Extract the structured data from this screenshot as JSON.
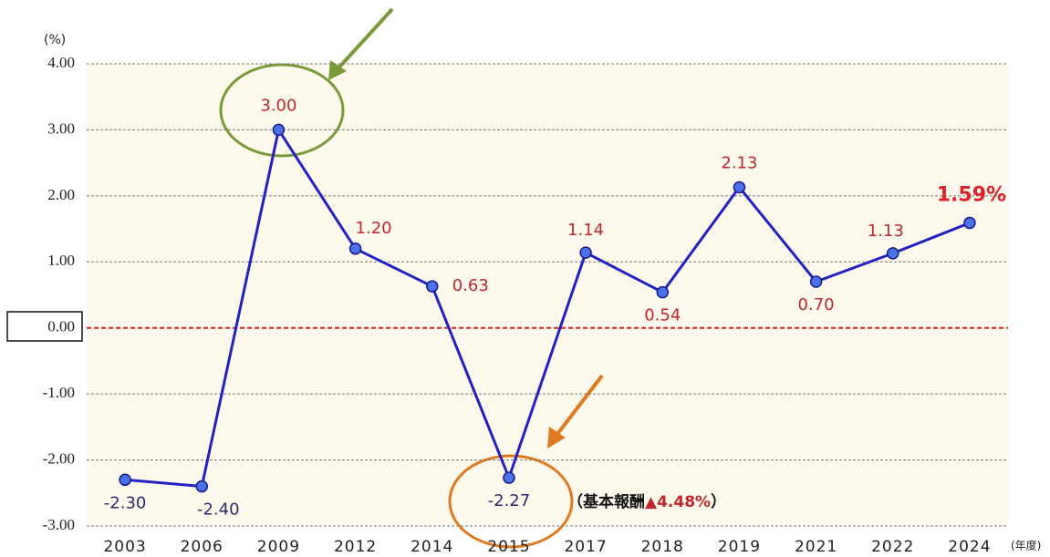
{
  "chart_data": {
    "type": "line",
    "y_axis_label": "(%)",
    "x_axis_label": "(年度)",
    "categories": [
      "2003",
      "2006",
      "2009",
      "2012",
      "2014",
      "2015",
      "2017",
      "2018",
      "2019",
      "2021",
      "2022",
      "2024"
    ],
    "series": [
      {
        "color": "#2222c4",
        "values": [
          -2.3,
          -2.4,
          3.0,
          1.2,
          0.63,
          -2.27,
          1.14,
          0.54,
          2.13,
          0.7,
          1.13,
          1.59
        ],
        "value_labels": [
          "-2.30",
          "-2.40",
          "3.00",
          "1.20",
          "0.63",
          "-2.27",
          "1.14",
          "0.54",
          "2.13",
          "0.70",
          "1.13",
          "1.59%"
        ]
      }
    ],
    "ylim": [
      -3,
      4
    ],
    "yticks": [
      {
        "value": 4,
        "label": "4.00"
      },
      {
        "value": 3,
        "label": "3.00"
      },
      {
        "value": 2,
        "label": "2.00"
      },
      {
        "value": 1,
        "label": "1.00"
      },
      {
        "value": 0,
        "label": "0.00"
      },
      {
        "value": -1,
        "label": "-1.00"
      },
      {
        "value": -2,
        "label": "-2.00"
      },
      {
        "value": -3,
        "label": "-3.00"
      }
    ],
    "grid": true,
    "annotation_parts": [
      "（基本報酬",
      "▲4.48%",
      "）"
    ]
  }
}
